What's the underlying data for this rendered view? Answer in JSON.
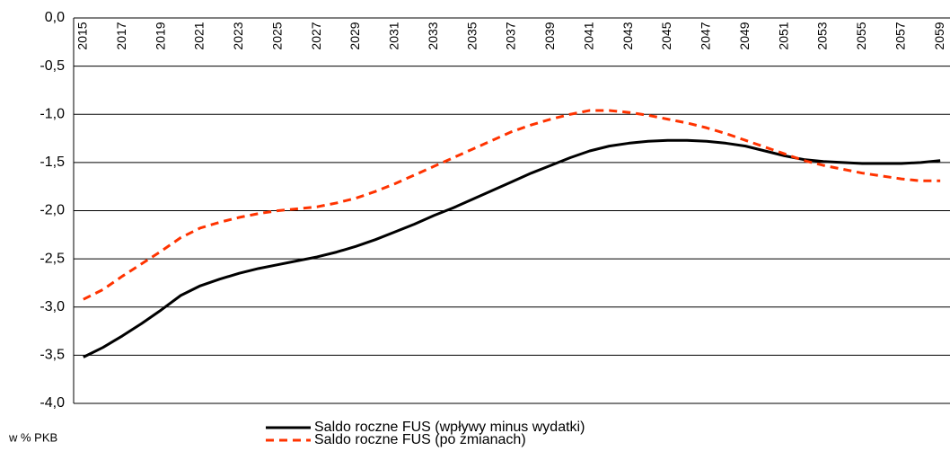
{
  "chart_data": {
    "type": "line",
    "y_label": "w % PKB",
    "categories": [
      "2015",
      null,
      "2017",
      null,
      "2019",
      null,
      "2021",
      null,
      "2023",
      null,
      "2025",
      null,
      "2027",
      null,
      "2029",
      null,
      "2031",
      null,
      "2033",
      null,
      "2035",
      null,
      "2037",
      null,
      "2039",
      null,
      "2041",
      null,
      "2043",
      null,
      "2045",
      null,
      "2047",
      null,
      "2049",
      null,
      "2051",
      null,
      "2053",
      null,
      "2055",
      null,
      "2057",
      null,
      "2059"
    ],
    "series": [
      {
        "name": "Saldo roczne FUS (wpływy minus wydatki)",
        "color": "#000000",
        "dash": false,
        "values": [
          -3.52,
          -3.42,
          -3.3,
          -3.17,
          -3.03,
          -2.88,
          -2.78,
          -2.71,
          -2.65,
          -2.6,
          -2.56,
          -2.52,
          -2.48,
          -2.43,
          -2.37,
          -2.3,
          -2.22,
          -2.14,
          -2.05,
          -1.97,
          -1.88,
          -1.79,
          -1.7,
          -1.61,
          -1.53,
          -1.45,
          -1.38,
          -1.33,
          -1.3,
          -1.28,
          -1.27,
          -1.27,
          -1.28,
          -1.3,
          -1.33,
          -1.38,
          -1.43,
          -1.47,
          -1.49,
          -1.5,
          -1.51,
          -1.51,
          -1.51,
          -1.5,
          -1.48
        ]
      },
      {
        "name": "Saldo roczne FUS (po zmianach)",
        "color": "#ff3300",
        "dash": true,
        "values": [
          -2.92,
          -2.82,
          -2.68,
          -2.55,
          -2.42,
          -2.28,
          -2.18,
          -2.12,
          -2.07,
          -2.03,
          -2.0,
          -1.98,
          -1.96,
          -1.92,
          -1.87,
          -1.8,
          -1.72,
          -1.63,
          -1.54,
          -1.45,
          -1.36,
          -1.27,
          -1.18,
          -1.11,
          -1.05,
          -1.0,
          -0.96,
          -0.96,
          -0.98,
          -1.01,
          -1.05,
          -1.09,
          -1.14,
          -1.2,
          -1.27,
          -1.34,
          -1.41,
          -1.48,
          -1.53,
          -1.57,
          -1.61,
          -1.64,
          -1.67,
          -1.69,
          -1.69
        ]
      }
    ],
    "ylim": [
      -4,
      0
    ],
    "yticks": [
      {
        "value": 0,
        "label": "0,0"
      },
      {
        "value": -0.5,
        "label": "-0,5"
      },
      {
        "value": -1,
        "label": "-1,0"
      },
      {
        "value": -1.5,
        "label": "-1,5"
      },
      {
        "value": -2,
        "label": "-2,0"
      },
      {
        "value": -2.5,
        "label": "-2,5"
      },
      {
        "value": -3,
        "label": "-3,0"
      },
      {
        "value": -3.5,
        "label": "-3,5"
      },
      {
        "value": -4,
        "label": "-4,0"
      }
    ],
    "grid": true
  }
}
